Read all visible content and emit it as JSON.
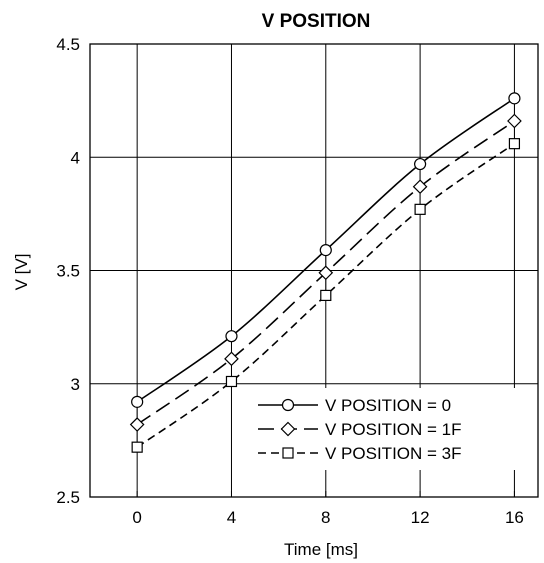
{
  "chart_data": {
    "type": "line",
    "title": "V POSITION",
    "xlabel": "Time [ms]",
    "ylabel": "V [V]",
    "xlim": [
      -2,
      17
    ],
    "ylim": [
      2.5,
      4.5
    ],
    "x_ticks": [
      "0",
      "4",
      "8",
      "12",
      "16"
    ],
    "y_ticks": [
      "2.5",
      "3",
      "3.5",
      "4",
      "4.5"
    ],
    "grid": true,
    "legend_position": "bottom-right",
    "series": [
      {
        "name": "V POSITION = 0",
        "line_style": "solid",
        "marker": "circle",
        "x": [
          0,
          4,
          8,
          12,
          16
        ],
        "y": [
          2.92,
          3.21,
          3.59,
          3.97,
          4.26
        ]
      },
      {
        "name": "V POSITION = 1F",
        "line_style": "long-dash",
        "marker": "diamond",
        "x": [
          0,
          4,
          8,
          12,
          16
        ],
        "y": [
          2.82,
          3.11,
          3.49,
          3.87,
          4.16
        ]
      },
      {
        "name": "V POSITION = 3F",
        "line_style": "short-dash",
        "marker": "square",
        "x": [
          0,
          4,
          8,
          12,
          16
        ],
        "y": [
          2.72,
          3.01,
          3.39,
          3.77,
          4.06
        ]
      }
    ]
  }
}
